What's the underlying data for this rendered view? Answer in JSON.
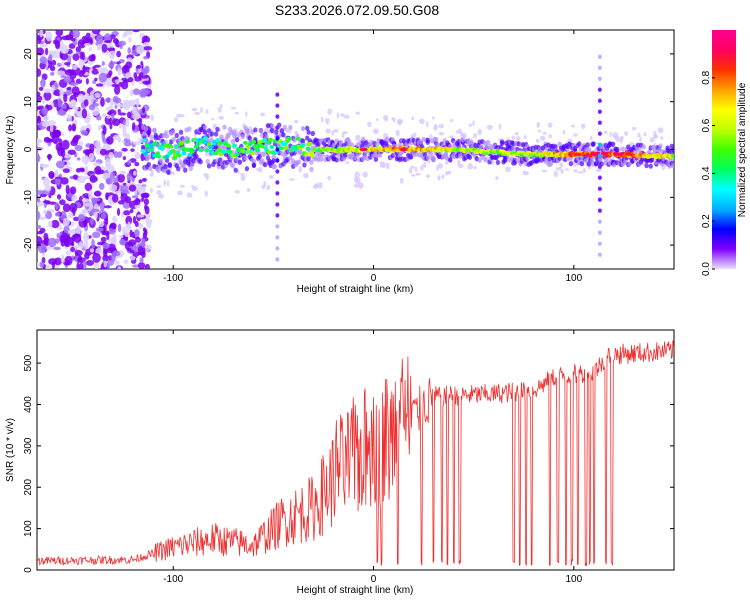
{
  "title": "S233.2026.072.09.50.G08",
  "chart_data": [
    {
      "type": "heatmap",
      "xlabel": "Height of straight line (km)",
      "ylabel": "Frequency (Hz)",
      "xlim": [
        -168,
        150
      ],
      "ylim": [
        -25,
        25
      ],
      "xticks": [
        -100,
        0,
        100
      ],
      "xtick_labels": [
        "-100",
        "0",
        "100"
      ],
      "yticks": [
        -20,
        -10,
        0,
        10,
        20
      ],
      "ytick_labels": [
        "-20",
        "-10",
        "0",
        "10",
        "20"
      ],
      "colorbar": {
        "label": "Normalized spectral amplitude",
        "range": [
          0.0,
          1.0
        ],
        "ticks": [
          0.0,
          0.2,
          0.4,
          0.6,
          0.8
        ],
        "tick_labels": [
          "0.0",
          "0.2",
          "0.4",
          "0.6",
          "0.8"
        ],
        "colormap": [
          "#e8e0ff",
          "#8000ff",
          "#0000ff",
          "#00b0ff",
          "#00ffff",
          "#00ff60",
          "#40ff00",
          "#c0ff00",
          "#ffff00",
          "#ffa000",
          "#ff3000",
          "#ff0060",
          "#ff0090"
        ]
      },
      "ridge": [
        {
          "x": -115,
          "y": 0.5,
          "amp": 0.35
        },
        {
          "x": -100,
          "y": -0.5,
          "amp": 0.4
        },
        {
          "x": -85,
          "y": 1.0,
          "amp": 0.4
        },
        {
          "x": -70,
          "y": 0.0,
          "amp": 0.45
        },
        {
          "x": -55,
          "y": 0.5,
          "amp": 0.45
        },
        {
          "x": -40,
          "y": 1.0,
          "amp": 0.45
        },
        {
          "x": -28,
          "y": 0.0,
          "amp": 0.5
        },
        {
          "x": -20,
          "y": 0.0,
          "amp": 0.55
        },
        {
          "x": -5,
          "y": 0.0,
          "amp": 0.6
        },
        {
          "x": 15,
          "y": 0.0,
          "amp": 0.75
        },
        {
          "x": 40,
          "y": 0.0,
          "amp": 0.6
        },
        {
          "x": 60,
          "y": -0.5,
          "amp": 0.55
        },
        {
          "x": 80,
          "y": -1.0,
          "amp": 0.55
        },
        {
          "x": 100,
          "y": -1.0,
          "amp": 0.8
        },
        {
          "x": 120,
          "y": -1.0,
          "amp": 0.85
        },
        {
          "x": 150,
          "y": -1.5,
          "amp": 0.6
        }
      ],
      "vertical_streaks": [
        {
          "x": 113,
          "ymin": -22,
          "ymax": 20
        },
        {
          "x": -48,
          "ymin": -23,
          "ymax": 12
        }
      ],
      "noise_region": {
        "xmin": -168,
        "xmax": -112,
        "ymin": -25,
        "ymax": 25
      }
    },
    {
      "type": "line",
      "xlabel": "Height of straight line (km)",
      "ylabel": "SNR (10 * v/v)",
      "xlim": [
        -168,
        150
      ],
      "ylim": [
        0,
        580
      ],
      "xticks": [
        -100,
        0,
        100
      ],
      "xtick_labels": [
        "-100",
        "0",
        "100"
      ],
      "yticks": [
        0,
        100,
        200,
        300,
        400,
        500
      ],
      "ytick_labels": [
        "0",
        "100",
        "200",
        "300",
        "400",
        "500"
      ],
      "color": "#f03030",
      "trend": [
        {
          "x": -168,
          "y": 22
        },
        {
          "x": -120,
          "y": 25
        },
        {
          "x": -100,
          "y": 55
        },
        {
          "x": -80,
          "y": 75
        },
        {
          "x": -60,
          "y": 60
        },
        {
          "x": -45,
          "y": 120
        },
        {
          "x": -30,
          "y": 150
        },
        {
          "x": -20,
          "y": 220
        },
        {
          "x": -10,
          "y": 270
        },
        {
          "x": 0,
          "y": 300
        },
        {
          "x": 10,
          "y": 320
        },
        {
          "x": 20,
          "y": 370
        },
        {
          "x": 30,
          "y": 420
        },
        {
          "x": 60,
          "y": 425
        },
        {
          "x": 80,
          "y": 435
        },
        {
          "x": 90,
          "y": 465
        },
        {
          "x": 110,
          "y": 480
        },
        {
          "x": 118,
          "y": 520
        },
        {
          "x": 150,
          "y": 530
        }
      ],
      "dropouts": [
        2,
        4,
        12,
        24,
        30,
        34,
        37,
        40,
        43,
        70,
        73,
        76,
        79,
        88,
        92,
        96,
        99,
        102,
        106,
        108,
        110,
        116,
        119
      ]
    }
  ]
}
